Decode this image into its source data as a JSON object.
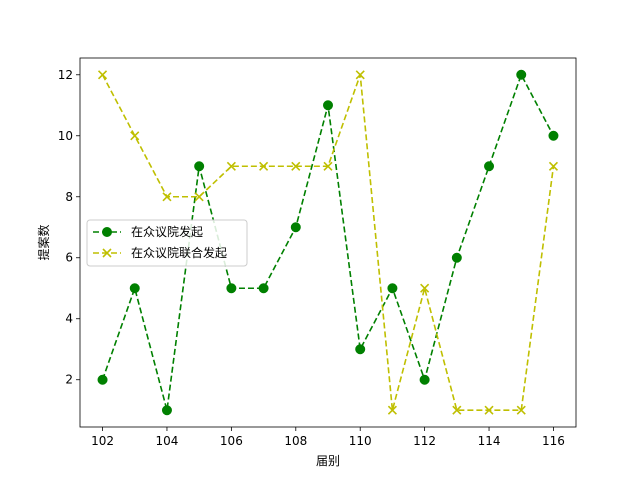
{
  "chart_data": {
    "type": "line",
    "title": "",
    "xlabel": "届别",
    "ylabel": "提案数",
    "x": [
      102,
      103,
      104,
      105,
      106,
      107,
      108,
      109,
      110,
      111,
      112,
      113,
      114,
      115,
      116
    ],
    "xlim": [
      101.3,
      116.7
    ],
    "ylim": [
      0.45,
      12.55
    ],
    "xticks": [
      102,
      104,
      106,
      108,
      110,
      112,
      114,
      116
    ],
    "yticks": [
      2,
      4,
      6,
      8,
      10,
      12
    ],
    "grid": false,
    "legend_position": "center-left",
    "series": [
      {
        "name": "在众议院发起",
        "values": [
          2,
          5,
          1,
          9,
          5,
          5,
          7,
          11,
          3,
          5,
          2,
          6,
          9,
          12,
          10
        ],
        "color": "#008000",
        "marker": "circle",
        "linestyle": "dashed"
      },
      {
        "name": "在众议院联合发起",
        "values": [
          12,
          10,
          8,
          8,
          9,
          9,
          9,
          9,
          12,
          1,
          5,
          1,
          1,
          1,
          9
        ],
        "color": "#bfbf00",
        "marker": "x",
        "linestyle": "dashed"
      }
    ]
  }
}
